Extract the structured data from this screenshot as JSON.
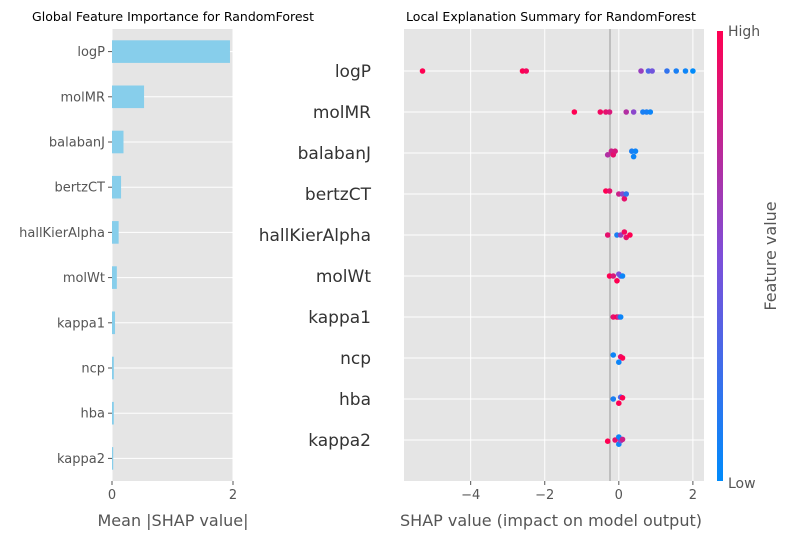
{
  "chart_data": [
    {
      "type": "bar",
      "orientation": "horizontal",
      "title": "Global Feature Importance for RandomForest",
      "xlabel": "Mean |SHAP value|",
      "ylabel": "",
      "categories": [
        "logP",
        "molMR",
        "balabanJ",
        "bertzCT",
        "hallKierAlpha",
        "molWt",
        "kappa1",
        "ncp",
        "hba",
        "kappa2"
      ],
      "values": [
        1.95,
        0.53,
        0.19,
        0.15,
        0.11,
        0.08,
        0.05,
        0.03,
        0.03,
        0.02
      ],
      "xlim": [
        0,
        2.0
      ],
      "xticks": [
        0,
        2
      ],
      "bar_color": "#87ceeb",
      "background": "#e5e5e5",
      "grid": true
    },
    {
      "type": "scatter",
      "subtype": "beeswarm",
      "title": "Local Explanation Summary for RandomForest",
      "xlabel": "SHAP value (impact on model output)",
      "xlim": [
        -5.8,
        2.3
      ],
      "xticks": [
        -4,
        -2,
        0,
        2
      ],
      "xtick_labels": [
        "−4",
        "−2",
        "0",
        "2"
      ],
      "features": [
        "logP",
        "molMR",
        "balabanJ",
        "bertzCT",
        "hallKierAlpha",
        "molWt",
        "kappa1",
        "ncp",
        "hba",
        "kappa2"
      ],
      "points": [
        [
          [
            -5.3,
            0,
            1.0
          ],
          [
            -2.6,
            0,
            1.0
          ],
          [
            -2.5,
            0,
            0.95
          ],
          [
            0.6,
            0,
            0.6
          ],
          [
            0.8,
            0,
            0.3
          ],
          [
            0.9,
            0,
            0.45
          ],
          [
            1.3,
            0,
            0.2
          ],
          [
            1.55,
            0,
            0.1
          ],
          [
            1.8,
            0,
            0.05
          ],
          [
            2.0,
            0,
            0.0
          ]
        ],
        [
          [
            -1.2,
            0,
            1.0
          ],
          [
            -0.5,
            0,
            0.95
          ],
          [
            -0.35,
            0,
            0.9
          ],
          [
            -0.25,
            0,
            0.85
          ],
          [
            0.2,
            0,
            0.7
          ],
          [
            0.4,
            0,
            0.55
          ],
          [
            0.65,
            0,
            0.1
          ],
          [
            0.75,
            0,
            0.1
          ],
          [
            0.85,
            0,
            0.05
          ]
        ],
        [
          [
            -0.3,
            0.3,
            0.7
          ],
          [
            -0.2,
            -0.3,
            0.8
          ],
          [
            -0.15,
            0.3,
            0.9
          ],
          [
            -0.1,
            -0.3,
            0.85
          ],
          [
            0.4,
            0.6,
            0.05
          ],
          [
            0.35,
            -0.3,
            0.1
          ],
          [
            0.45,
            -0.3,
            0.05
          ]
        ],
        [
          [
            -0.35,
            -0.5,
            1.0
          ],
          [
            -0.25,
            -0.5,
            0.9
          ],
          [
            0.0,
            0.0,
            0.8
          ],
          [
            0.1,
            0.0,
            0.55
          ],
          [
            0.15,
            0.8,
            0.9
          ],
          [
            0.2,
            0.0,
            0.2
          ]
        ],
        [
          [
            -0.3,
            0.0,
            0.9
          ],
          [
            -0.05,
            0.0,
            0.1
          ],
          [
            0.05,
            0.0,
            0.6
          ],
          [
            0.15,
            -0.5,
            0.95
          ],
          [
            0.2,
            0.4,
            0.9
          ],
          [
            0.3,
            0.0,
            1.0
          ]
        ],
        [
          [
            -0.25,
            0.0,
            1.0
          ],
          [
            -0.15,
            0.0,
            0.85
          ],
          [
            -0.05,
            0.8,
            1.0
          ],
          [
            0.0,
            -0.3,
            0.5
          ],
          [
            0.05,
            0.0,
            0.4
          ],
          [
            0.1,
            0.0,
            0.05
          ]
        ],
        [
          [
            -0.15,
            0.0,
            0.9
          ],
          [
            -0.05,
            0.0,
            1.0
          ],
          [
            0.0,
            0.0,
            0.7
          ],
          [
            0.05,
            0.0,
            0.05
          ]
        ],
        [
          [
            -0.15,
            -0.5,
            0.05
          ],
          [
            0.0,
            0.7,
            0.05
          ],
          [
            0.05,
            -0.2,
            0.9
          ],
          [
            0.1,
            0.0,
            1.0
          ]
        ],
        [
          [
            -0.15,
            0.0,
            0.1
          ],
          [
            0.0,
            0.7,
            1.0
          ],
          [
            0.05,
            -0.3,
            0.3
          ],
          [
            0.1,
            -0.2,
            1.0
          ]
        ],
        [
          [
            -0.3,
            0.2,
            1.0
          ],
          [
            -0.1,
            0.0,
            0.9
          ],
          [
            0.0,
            0.7,
            0.05
          ],
          [
            0.05,
            0.1,
            0.55
          ],
          [
            0.0,
            -0.5,
            0.05
          ],
          [
            0.1,
            -0.1,
            0.8
          ]
        ]
      ],
      "colorbar": {
        "label": "Feature value",
        "high": "High",
        "low": "Low",
        "low_color": "#008bfb",
        "high_color": "#ff0052"
      },
      "background": "#e5e5e5",
      "grid": true
    }
  ]
}
